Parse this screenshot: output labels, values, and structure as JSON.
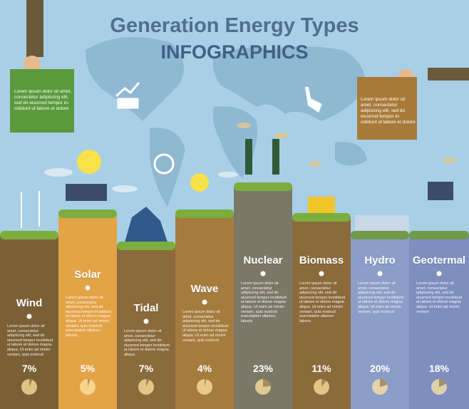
{
  "title": "Generation Energy Types",
  "subtitle": "INFOGRAPHICS",
  "notes": [
    "Lorem ipsum dolor sit amet, consectetur adipiscing elit, sed do eiusmod tempor in-cididunt ut labore et dolore",
    "Lorem ipsum dolor sit amet, consectetur adipiscing elit, sed do eiusmod tempor in-cididunt ut labore et dolore"
  ],
  "columns": [
    {
      "name": "Wind",
      "percent": 7,
      "percent_label": "7%",
      "color": "#7b6036",
      "text": "Lorem ipsum dolor sit amet, consectetur adipiscing elit, sed do eiusmod tempor incididunt ut labore et dolore magna aliqua. Ut enim ad minim veniam, quis nostrud"
    },
    {
      "name": "Solar",
      "percent": 5,
      "percent_label": "5%",
      "color": "#e3a447",
      "text": "Lorem ipsum dolor sit amet, consectetur adipiscing elit, sed do eiusmod tempor incididunt ut labore et dolore magna aliqua. Ut enim ad minim veniam, quis nostrud exercitation ullamco laboris"
    },
    {
      "name": "Tidal",
      "percent": 7,
      "percent_label": "7%",
      "color": "#8b6a3c",
      "text": "Lorem ipsum dolor sit amet, consectetur adipiscing elit, sed do eiusmod tempor incididunt ut labore et dolore magna aliqua."
    },
    {
      "name": "Wave",
      "percent": 4,
      "percent_label": "4%",
      "color": "#a67c3e",
      "text": "Lorem ipsum dolor sit amet, consectetur adipiscing elit, sed do eiusmod tempor incididunt ut labore et dolore magna aliqua. Ut enim ad minim veniam, quis nostrud"
    },
    {
      "name": "Nuclear",
      "percent": 23,
      "percent_label": "23%",
      "color": "#7c7868",
      "text": "Lorem ipsum dolor sit amet, consectetur adipiscing elit, sed do eiusmod tempor incididunt ut labore et dolore magna aliqua. Ut enim ad minim veniam, quis nostrud exercitation ullamco laboris"
    },
    {
      "name": "Biomass",
      "percent": 11,
      "percent_label": "11%",
      "color": "#8b6a3c",
      "text": "Lorem ipsum dolor sit amet, consectetur adipiscing elit, sed do eiusmod tempor incididunt ut labore et dolore magna aliqua. Ut enim ad minim veniam, quis nostrud exercitation ullamco laboris"
    },
    {
      "name": "Hydro",
      "percent": 20,
      "percent_label": "20%",
      "color": "#8c9dc8",
      "text": "Lorem ipsum dolor sit amet, consectetur adipiscing elit, sed do eiusmod tempor incididunt ut labore et dolore magna aliqua. Ut enim ad minim veniam, quis nostrud"
    },
    {
      "name": "Geotermal",
      "percent": 18,
      "percent_label": "18%",
      "color": "#7e8fbf",
      "text": "Lorem ipsum dolor sit amet, consectetur adipiscing elit, sed do eiusmod tempor incididunt ut labore et dolore magna aliqua. Ut enim ad minim veniam"
    }
  ]
}
